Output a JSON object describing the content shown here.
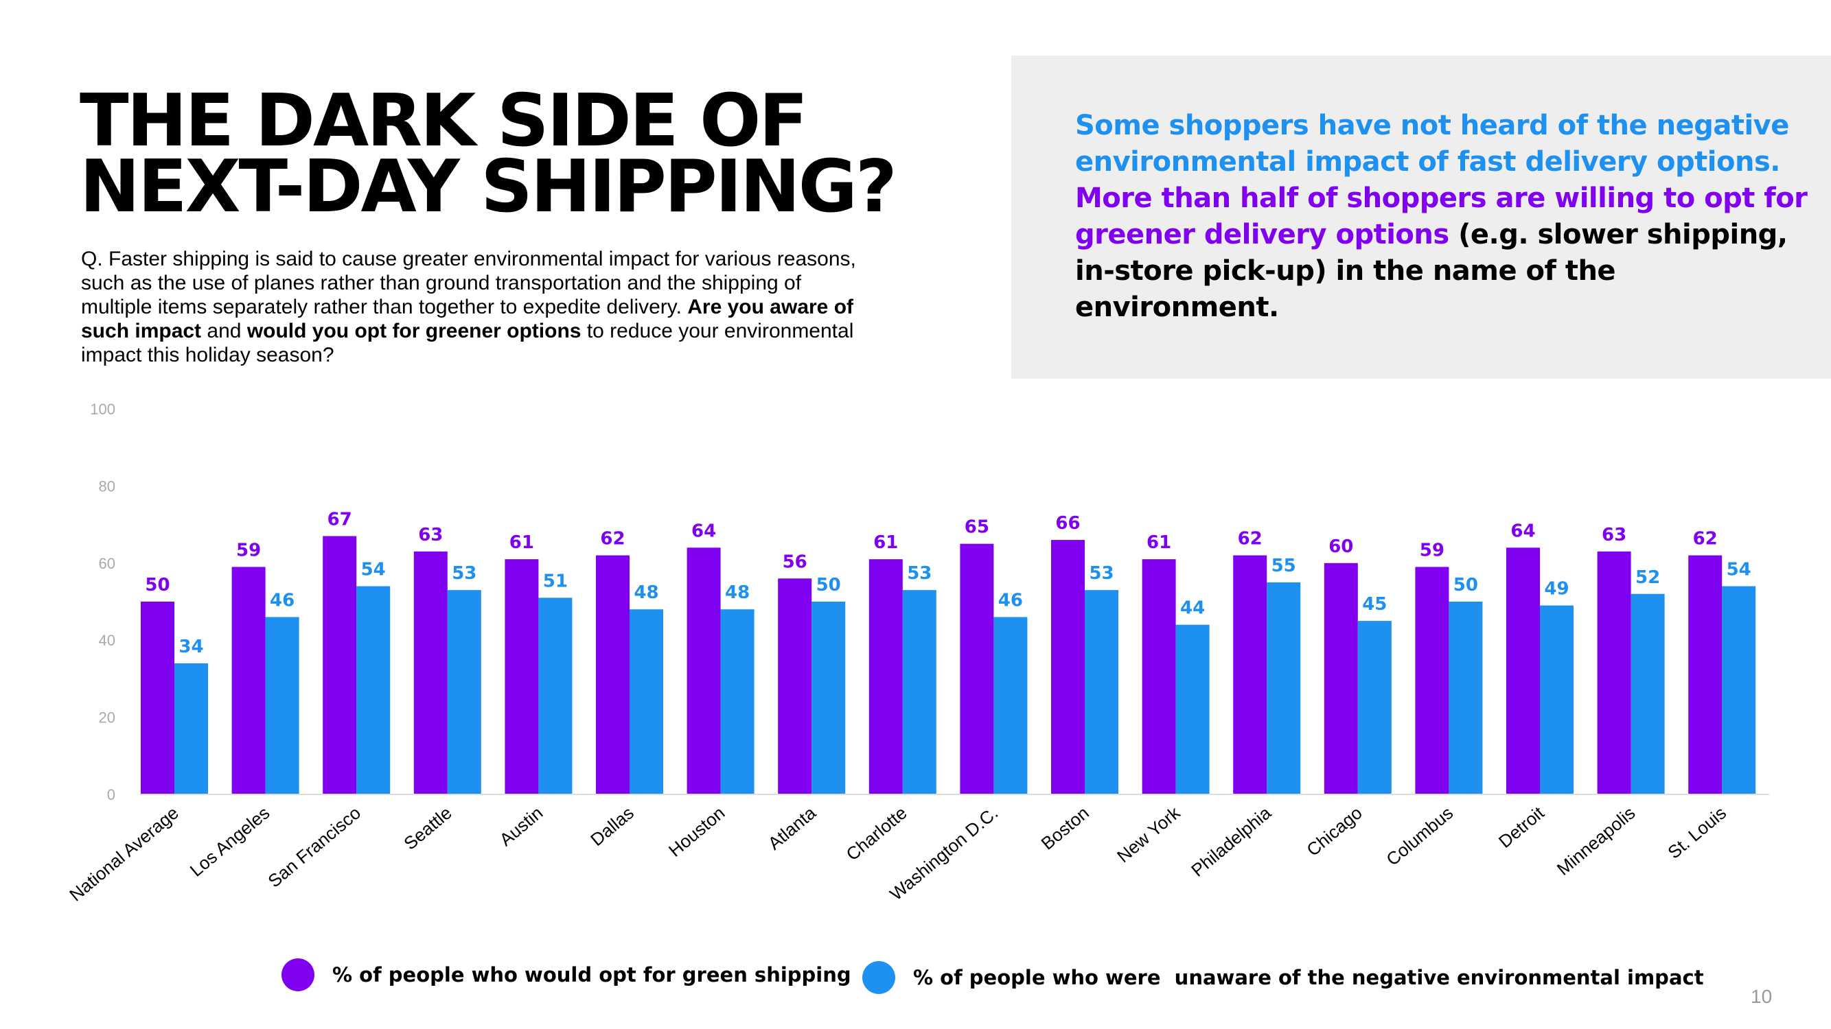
{
  "title": {
    "line1": "THE DARK SIDE OF",
    "line2": "NEXT-DAY SHIPPING?"
  },
  "question": {
    "text1": "Q. Faster shipping is said to cause greater environmental impact for various reasons, such as the use of planes rather than ground transportation and the shipping of multiple items separately rather than together to expedite delivery.",
    "bold1": "Are you aware of such impact",
    "text2": "and",
    "bold2": "would you opt for greener options",
    "text3": "to reduce your environmental impact this holiday season?"
  },
  "callout": {
    "part1": "Some shoppers have not heard of the negative environmental impact of fast delivery options.",
    "part2": "More than half of shoppers are willing to opt for greener delivery options",
    "part3": "(e.g. slower shipping, in-store pick-up) in the name of the environment."
  },
  "colors": {
    "purple": "#8000f0",
    "blue": "#1e90f0",
    "callout_bg": "#eeeeee"
  },
  "chart_data": {
    "type": "bar",
    "categories": [
      "National Average",
      "Los Angeles",
      "San Francisco",
      "Seattle",
      "Austin",
      "Dallas",
      "Houston",
      "Atlanta",
      "Charlotte",
      "Washington D.C.",
      "Boston",
      "New York",
      "Philadelphia",
      "Chicago",
      "Columbus",
      "Detroit",
      "Minneapolis",
      "St. Louis"
    ],
    "series": [
      {
        "name": "% of people who would opt for green shipping",
        "color": "#8000f0",
        "values": [
          50,
          59,
          67,
          63,
          61,
          62,
          64,
          56,
          61,
          65,
          66,
          61,
          62,
          60,
          59,
          64,
          63,
          62
        ]
      },
      {
        "name": "% of people who were  unaware of the negative environmental impact",
        "color": "#1e90f0",
        "values": [
          34,
          46,
          54,
          53,
          51,
          48,
          48,
          50,
          53,
          46,
          53,
          44,
          55,
          45,
          50,
          49,
          52,
          54
        ]
      }
    ],
    "y_ticks": [
      "0",
      "20",
      "40",
      "60",
      "80",
      "100"
    ],
    "ylim": [
      0,
      100
    ],
    "grid": false,
    "legend_position": "bottom",
    "data_labels": true
  },
  "page_number": "10"
}
